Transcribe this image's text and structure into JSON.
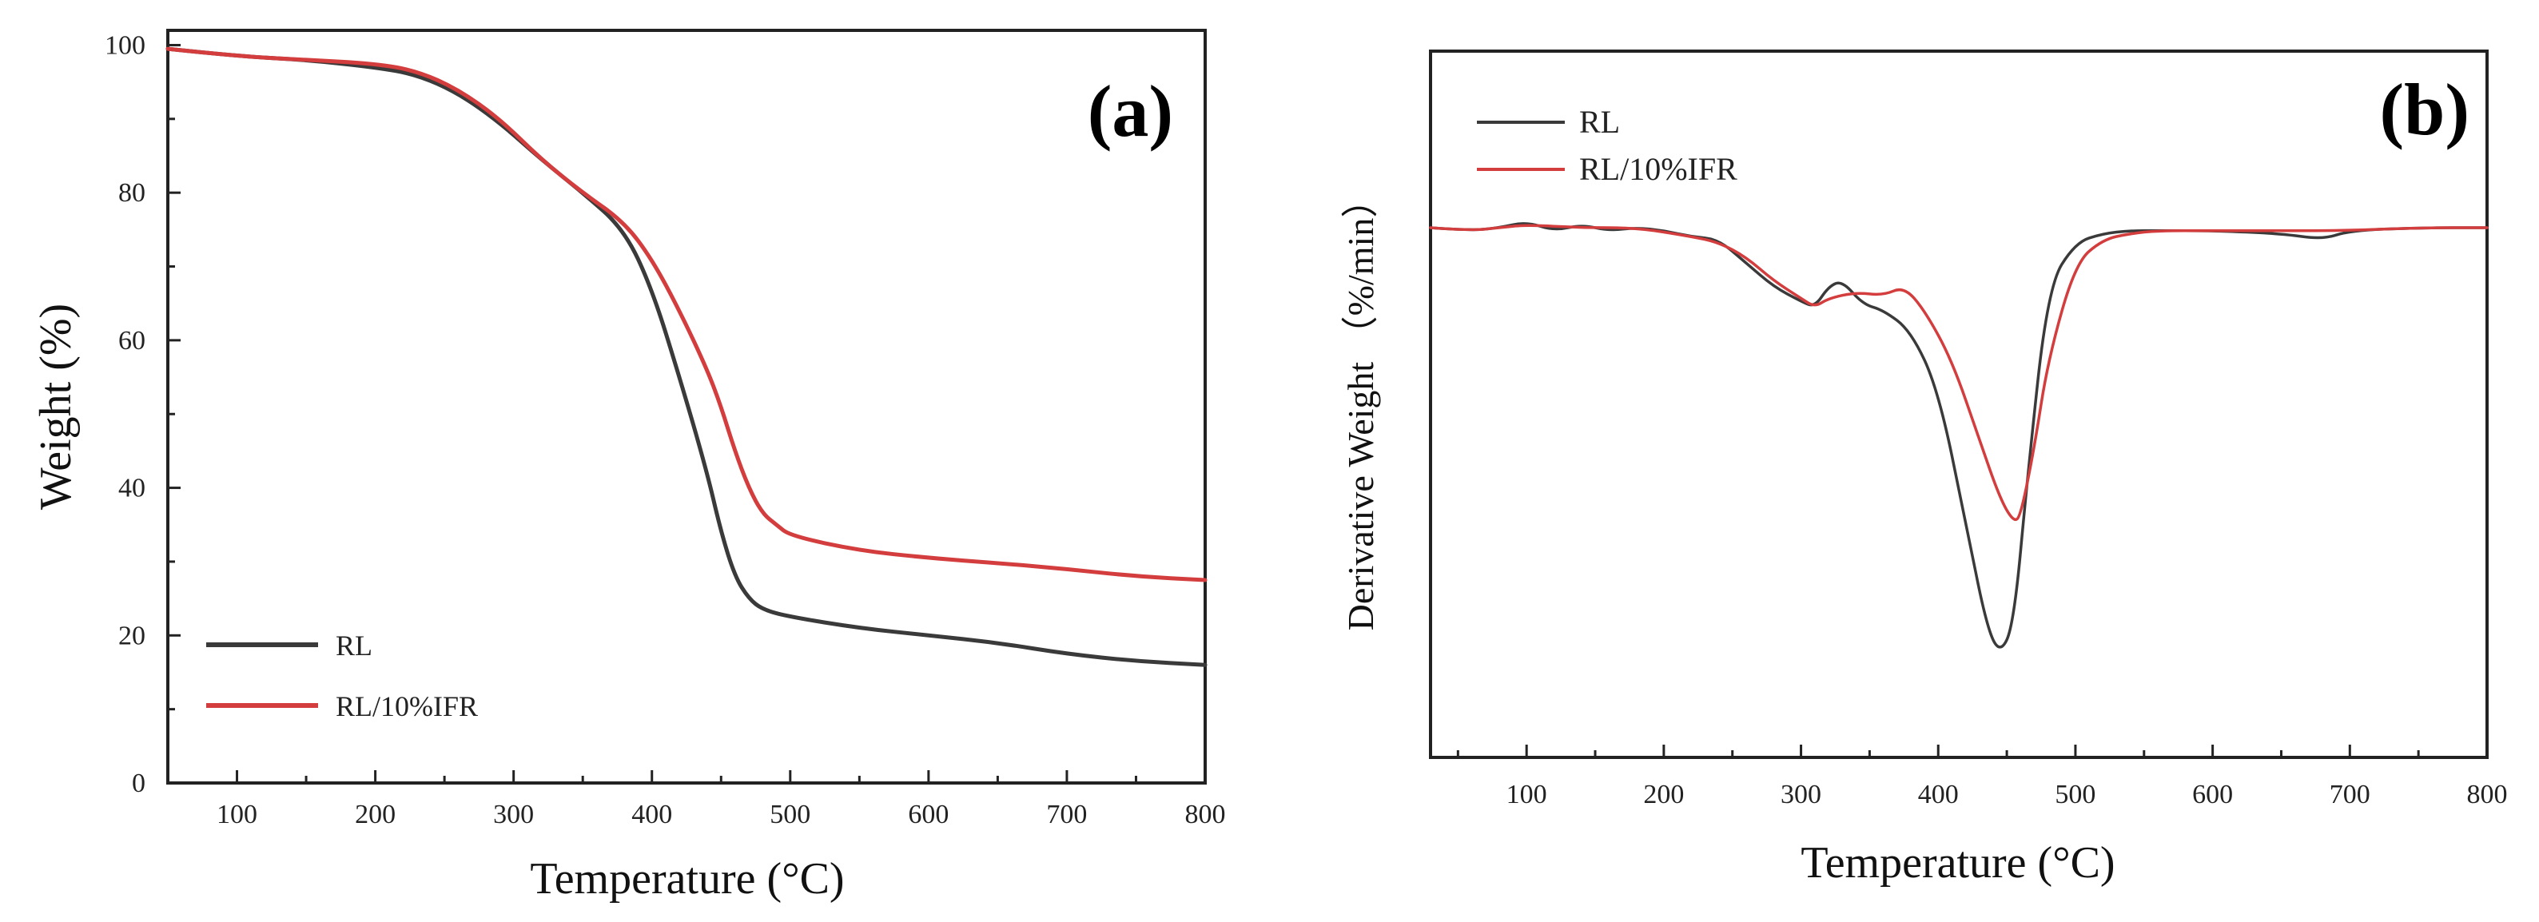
{
  "colors": {
    "RL": "#3a3a3a",
    "RL_IFR": "#d43d3d",
    "axis": "#222222"
  },
  "chart_data": [
    {
      "type": "line",
      "panel_label": "(a)",
      "title": "",
      "xlabel": "Temperature (°C)",
      "ylabel": "Weight (%)",
      "xlim": [
        50,
        800
      ],
      "ylim": [
        0,
        102
      ],
      "xticks": [
        100,
        200,
        300,
        400,
        500,
        600,
        700,
        800
      ],
      "yticks": [
        0,
        20,
        40,
        60,
        80,
        100
      ],
      "legend_position": "bottom-left",
      "series": [
        {
          "name": "RL",
          "color": "#3a3a3a",
          "x": [
            50,
            100,
            150,
            200,
            230,
            260,
            290,
            320,
            350,
            380,
            400,
            420,
            440,
            450,
            460,
            470,
            480,
            500,
            550,
            600,
            650,
            700,
            750,
            800
          ],
          "y": [
            99.5,
            98.5,
            98,
            97,
            96,
            93.5,
            89.5,
            84.5,
            80,
            75,
            67,
            55,
            42,
            34,
            28,
            25,
            23.5,
            22.5,
            21,
            20,
            19,
            17.5,
            16.5,
            16
          ]
        },
        {
          "name": "RL/10%IFR",
          "color": "#d43d3d",
          "x": [
            50,
            100,
            150,
            200,
            230,
            260,
            290,
            320,
            350,
            380,
            400,
            420,
            440,
            450,
            460,
            470,
            480,
            490,
            500,
            550,
            600,
            650,
            700,
            750,
            800
          ],
          "y": [
            99.5,
            98.5,
            98,
            97.5,
            96.5,
            94,
            90,
            84.5,
            80,
            76,
            71,
            64,
            56,
            51,
            45,
            40,
            36.5,
            35,
            33.5,
            31.5,
            30.5,
            29.8,
            29,
            28,
            27.5
          ]
        }
      ]
    },
    {
      "type": "line",
      "panel_label": "(b)",
      "title": "",
      "xlabel": "Temperature (°C)",
      "ylabel": "Derivative Weight （%/min）",
      "xlim": [
        30,
        800
      ],
      "ylim": [
        -1.8,
        0.6
      ],
      "xticks": [
        100,
        200,
        300,
        400,
        500,
        600,
        700,
        800
      ],
      "yticks": [],
      "legend_position": "top-left",
      "series": [
        {
          "name": "RL",
          "color": "#3a3a3a",
          "x": [
            30,
            60,
            80,
            100,
            120,
            140,
            160,
            180,
            200,
            220,
            240,
            260,
            280,
            300,
            310,
            320,
            330,
            345,
            360,
            380,
            400,
            420,
            435,
            445,
            455,
            465,
            480,
            500,
            520,
            540,
            560,
            600,
            650,
            680,
            700,
            750,
            800
          ],
          "y": [
            0,
            -0.01,
            0,
            0.02,
            -0.01,
            0.01,
            -0.01,
            0,
            -0.01,
            -0.03,
            -0.04,
            -0.12,
            -0.2,
            -0.25,
            -0.27,
            -0.2,
            -0.18,
            -0.26,
            -0.28,
            -0.35,
            -0.55,
            -1.0,
            -1.35,
            -1.45,
            -1.35,
            -0.85,
            -0.2,
            -0.05,
            -0.02,
            -0.01,
            -0.01,
            -0.01,
            -0.02,
            -0.04,
            -0.01,
            0,
            0
          ]
        },
        {
          "name": "RL/10%IFR",
          "color": "#d43d3d",
          "x": [
            30,
            60,
            80,
            100,
            140,
            180,
            220,
            240,
            260,
            280,
            300,
            310,
            320,
            340,
            360,
            375,
            390,
            410,
            430,
            445,
            455,
            460,
            470,
            480,
            500,
            520,
            540,
            560,
            600,
            650,
            700,
            750,
            800
          ],
          "y": [
            0,
            -0.01,
            0,
            0.01,
            0,
            0,
            -0.03,
            -0.05,
            -0.1,
            -0.18,
            -0.24,
            -0.27,
            -0.24,
            -0.22,
            -0.23,
            -0.2,
            -0.28,
            -0.45,
            -0.72,
            -0.92,
            -1.0,
            -0.98,
            -0.75,
            -0.45,
            -0.12,
            -0.04,
            -0.02,
            -0.01,
            -0.01,
            -0.01,
            -0.01,
            0,
            0
          ]
        }
      ]
    }
  ]
}
